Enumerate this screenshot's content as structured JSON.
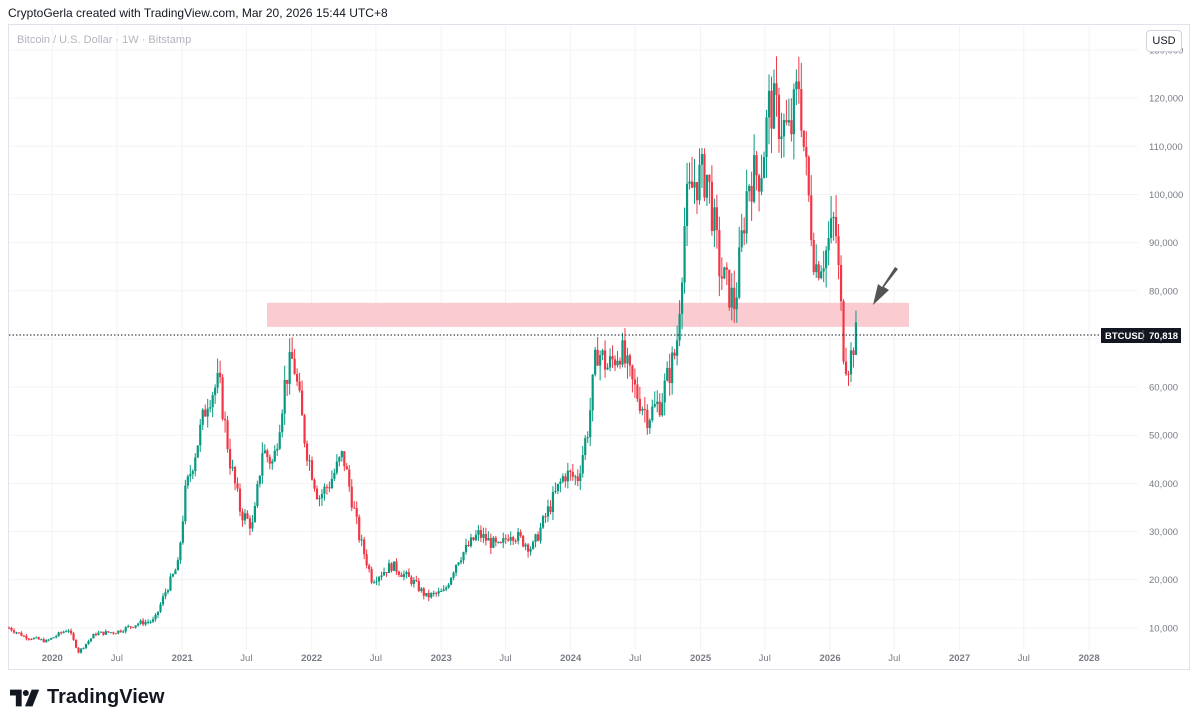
{
  "header": {
    "attribution": "CryptoGerla created with TradingView.com, Mar 20, 2026 15:44 UTC+8"
  },
  "symbol": {
    "title": "Bitcoin / U.S. Dollar · 1W · Bitstamp"
  },
  "currency_button": "USD",
  "price_tag": {
    "symbol": "BTCUSD",
    "value": "70,818"
  },
  "branding": {
    "name": "TradingView"
  },
  "colors": {
    "up": "#089981",
    "down": "#f23645",
    "zone": "#f9c6cc",
    "arrow": "#545454"
  },
  "chart_data": {
    "type": "candlestick",
    "title": "Bitcoin / U.S. Dollar · 1W · Bitstamp",
    "ylim": [
      0,
      130000
    ],
    "y_ticks": [
      10000,
      20000,
      30000,
      40000,
      50000,
      60000,
      70000,
      80000,
      90000,
      100000,
      110000,
      120000,
      130000
    ],
    "y_tick_labels": [
      "10,000",
      "20,000",
      "30,000",
      "40,000",
      "50,000",
      "60,000",
      "70,000",
      "80,000",
      "90,000",
      "100,000",
      "110,000",
      "120,000",
      "130,000"
    ],
    "x_ticks": [
      "2020-01-01",
      "2020-07-01",
      "2021-01-01",
      "2021-07-01",
      "2022-01-01",
      "2022-07-01",
      "2023-01-01",
      "2023-07-01",
      "2024-01-01",
      "2024-07-01",
      "2025-01-01",
      "2025-07-01",
      "2026-01-01",
      "2026-07-01",
      "2027-01-01",
      "2027-07-01",
      "2028-01-01"
    ],
    "x_tick_labels": [
      "2020",
      "Jul",
      "2021",
      "Jul",
      "2022",
      "Jul",
      "2023",
      "Jul",
      "2024",
      "Jul",
      "2025",
      "Jul",
      "2026",
      "Jul",
      "2027",
      "Jul",
      "2028"
    ],
    "x_range": [
      "2019-09-01",
      "2028-06-01"
    ],
    "last_price": 70818,
    "resistance_zone": {
      "low": 72500,
      "high": 77500,
      "from": "2021-08-01",
      "to": "2026-05-15"
    },
    "annotation_arrow": {
      "date": "2026-04-01",
      "price": 77000
    },
    "close_path": [
      [
        "2019-09-01",
        10000
      ],
      [
        "2019-10-15",
        8200
      ],
      [
        "2019-12-15",
        7200
      ],
      [
        "2020-02-15",
        9800
      ],
      [
        "2020-03-15",
        5000
      ],
      [
        "2020-05-01",
        8800
      ],
      [
        "2020-07-01",
        9200
      ],
      [
        "2020-09-01",
        11000
      ],
      [
        "2020-10-15",
        11500
      ],
      [
        "2020-11-15",
        17500
      ],
      [
        "2020-12-20",
        23000
      ],
      [
        "2021-01-10",
        38000
      ],
      [
        "2021-02-15",
        49000
      ],
      [
        "2021-03-15",
        58000
      ],
      [
        "2021-04-15",
        61000
      ],
      [
        "2021-05-15",
        45000
      ],
      [
        "2021-06-15",
        34000
      ],
      [
        "2021-07-20",
        31000
      ],
      [
        "2021-08-15",
        47000
      ],
      [
        "2021-09-15",
        44000
      ],
      [
        "2021-10-20",
        62000
      ],
      [
        "2021-11-10",
        66000
      ],
      [
        "2021-12-15",
        48000
      ],
      [
        "2022-01-20",
        37000
      ],
      [
        "2022-02-20",
        40000
      ],
      [
        "2022-03-30",
        46000
      ],
      [
        "2022-05-15",
        29000
      ],
      [
        "2022-06-20",
        20000
      ],
      [
        "2022-08-15",
        23000
      ],
      [
        "2022-10-15",
        19500
      ],
      [
        "2022-11-20",
        16500
      ],
      [
        "2023-01-10",
        17500
      ],
      [
        "2023-02-15",
        24000
      ],
      [
        "2023-04-15",
        29500
      ],
      [
        "2023-06-15",
        26500
      ],
      [
        "2023-07-15",
        30000
      ],
      [
        "2023-09-15",
        26500
      ],
      [
        "2023-10-30",
        34500
      ],
      [
        "2023-12-15",
        42000
      ],
      [
        "2024-01-20",
        41000
      ],
      [
        "2024-02-20",
        52000
      ],
      [
        "2024-03-15",
        68000
      ],
      [
        "2024-04-15",
        64000
      ],
      [
        "2024-05-20",
        68000
      ],
      [
        "2024-06-20",
        61000
      ],
      [
        "2024-08-05",
        54000
      ],
      [
        "2024-09-10",
        57000
      ],
      [
        "2024-10-25",
        68000
      ],
      [
        "2024-11-20",
        97000
      ],
      [
        "2024-12-15",
        103000
      ],
      [
        "2025-01-20",
        104000
      ],
      [
        "2025-02-25",
        84000
      ],
      [
        "2025-04-08",
        77000
      ],
      [
        "2025-05-15",
        103000
      ],
      [
        "2025-06-20",
        105000
      ],
      [
        "2025-07-15",
        119000
      ],
      [
        "2025-08-15",
        115000
      ],
      [
        "2025-09-10",
        112000
      ],
      [
        "2025-10-06",
        124000
      ],
      [
        "2025-10-20",
        109000
      ],
      [
        "2025-11-20",
        85000
      ],
      [
        "2025-12-20",
        88000
      ],
      [
        "2026-01-15",
        95000
      ],
      [
        "2026-01-30",
        78000
      ],
      [
        "2026-02-10",
        66000
      ],
      [
        "2026-02-25",
        65000
      ],
      [
        "2026-03-10",
        70000
      ],
      [
        "2026-03-20",
        70818
      ]
    ]
  }
}
